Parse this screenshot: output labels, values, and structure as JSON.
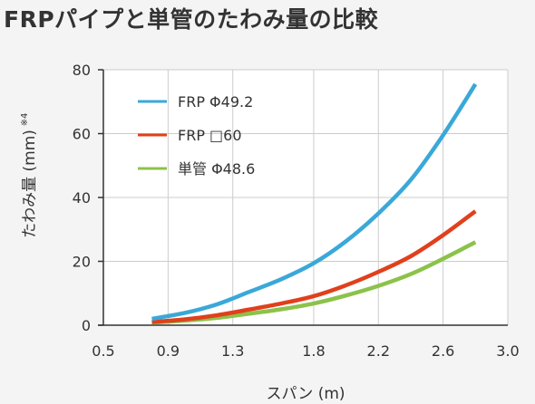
{
  "header": {
    "title": "FRPパイプと単管のたわみ量の比較"
  },
  "chart_data": {
    "type": "line",
    "title": "FRPパイプと単管のたわみ量の比較",
    "xlabel": "スパン (m)",
    "ylabel": "たわみ量 (mm)",
    "ylabel_note": "※4",
    "xlim": [
      0.5,
      3.0
    ],
    "ylim": [
      0,
      80
    ],
    "x_ticks": [
      0.5,
      0.9,
      1.3,
      1.8,
      2.2,
      2.6,
      3.0
    ],
    "x_tick_labels": [
      "0.5",
      "0.9",
      "1.3",
      "1.8",
      "2.2",
      "2.6",
      "3.0"
    ],
    "y_ticks": [
      0,
      20,
      40,
      60,
      80
    ],
    "y_tick_labels": [
      "0",
      "20",
      "40",
      "60",
      "80"
    ],
    "grid": true,
    "legend_position": "top-left",
    "x": [
      0.8,
      1.0,
      1.2,
      1.4,
      1.6,
      1.8,
      2.0,
      2.2,
      2.4,
      2.6,
      2.8
    ],
    "series": [
      {
        "name": "FRP Φ49.2",
        "color": "#3aa8d8",
        "values": [
          2.0,
          3.8,
          6.5,
          10.4,
          14.4,
          19.4,
          26.3,
          35.0,
          45.5,
          59.5,
          75.5
        ]
      },
      {
        "name": "FRP □60",
        "color": "#e0401c",
        "values": [
          1.0,
          1.8,
          3.1,
          4.9,
          6.8,
          9.1,
          12.5,
          16.7,
          21.6,
          28.2,
          35.7
        ]
      },
      {
        "name": "単管 Φ48.6",
        "color": "#8cc24a",
        "values": [
          0.8,
          1.4,
          2.3,
          3.6,
          5.0,
          6.8,
          9.3,
          12.3,
          16.0,
          20.8,
          26.0
        ]
      }
    ]
  }
}
